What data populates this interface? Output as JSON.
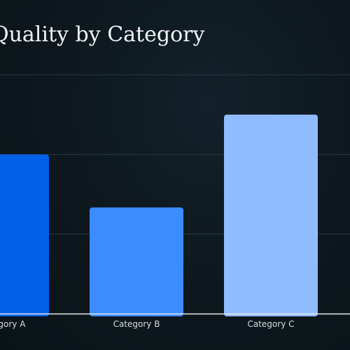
{
  "chart_data": {
    "type": "bar",
    "title": "Quality by Category",
    "categories": [
      "Category A",
      "Category B",
      "Category C"
    ],
    "values": [
      60,
      40,
      75
    ],
    "colors": [
      "#0060e8",
      "#3c8cff",
      "#8fbcff"
    ],
    "xlabel": "",
    "ylabel": "",
    "ylim": [
      0,
      90
    ],
    "grid": true,
    "gridlines": [
      0,
      30,
      60,
      90
    ],
    "legend": "none"
  }
}
